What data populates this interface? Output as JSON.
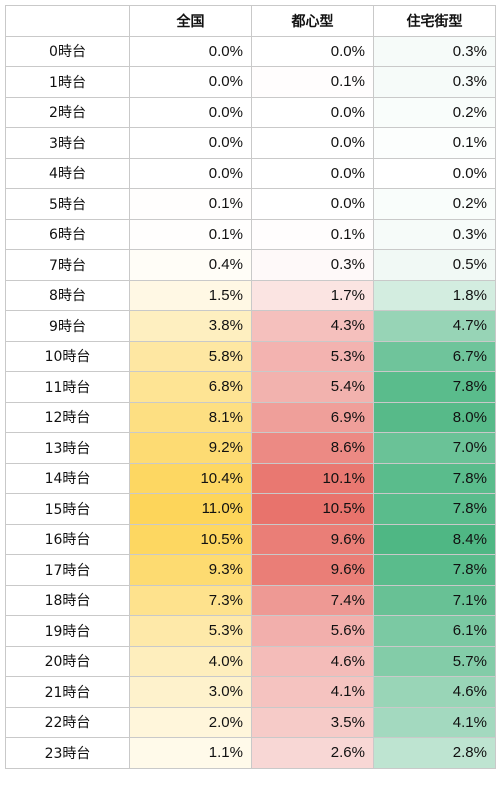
{
  "chart_data": {
    "type": "heatmap",
    "columns": [
      "全国",
      "都心型",
      "住宅街型"
    ],
    "rows": [
      "0時台",
      "1時台",
      "2時台",
      "3時台",
      "4時台",
      "5時台",
      "6時台",
      "7時台",
      "8時台",
      "9時台",
      "10時台",
      "11時台",
      "12時台",
      "13時台",
      "14時台",
      "15時台",
      "16時台",
      "17時台",
      "18時台",
      "19時台",
      "20時台",
      "21時台",
      "22時台",
      "23時台"
    ],
    "unit": "%",
    "values": [
      [
        0.0,
        0.0,
        0.3
      ],
      [
        0.0,
        0.1,
        0.3
      ],
      [
        0.0,
        0.0,
        0.2
      ],
      [
        0.0,
        0.0,
        0.1
      ],
      [
        0.0,
        0.0,
        0.0
      ],
      [
        0.1,
        0.0,
        0.2
      ],
      [
        0.1,
        0.1,
        0.3
      ],
      [
        0.4,
        0.3,
        0.5
      ],
      [
        1.5,
        1.7,
        1.8
      ],
      [
        3.8,
        4.3,
        4.7
      ],
      [
        5.8,
        5.3,
        6.7
      ],
      [
        6.8,
        5.4,
        7.8
      ],
      [
        8.1,
        6.9,
        8.0
      ],
      [
        9.2,
        8.6,
        7.0
      ],
      [
        10.4,
        10.1,
        7.8
      ],
      [
        11.0,
        10.5,
        7.8
      ],
      [
        10.5,
        9.6,
        8.4
      ],
      [
        9.3,
        9.6,
        7.8
      ],
      [
        7.3,
        7.4,
        7.1
      ],
      [
        5.3,
        5.6,
        6.1
      ],
      [
        4.0,
        4.6,
        5.7
      ],
      [
        3.0,
        4.1,
        4.6
      ],
      [
        2.0,
        3.5,
        4.1
      ],
      [
        1.1,
        2.6,
        2.8
      ]
    ],
    "colors": [
      "#fdd55a",
      "#e8736c",
      "#4fb784"
    ]
  }
}
